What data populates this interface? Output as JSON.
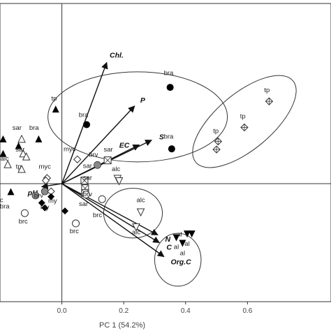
{
  "chart_data": {
    "type": "scatter",
    "title": "",
    "xlabel": "PC 1 (54.2%)",
    "ylabel": "",
    "xlim": [
      -0.2,
      0.87
    ],
    "ylim": [
      -0.38,
      0.58
    ],
    "x_ticks": [
      0.0,
      0.2,
      0.4,
      0.6
    ],
    "x_tick_labels": [
      "0.0",
      "0.2",
      "0.4",
      "0.6"
    ],
    "grid": false,
    "reference_lines": {
      "x": 0,
      "y": 0
    },
    "vectors": [
      {
        "label": "Chl.",
        "x": 0.145,
        "y": 0.39
      },
      {
        "label": "P",
        "x": 0.235,
        "y": 0.25
      },
      {
        "label": "S",
        "x": 0.29,
        "y": 0.14
      },
      {
        "label": "EC",
        "x": 0.25,
        "y": 0.125
      },
      {
        "label": "pH",
        "x": -0.065,
        "y": -0.01
      },
      {
        "label": "N",
        "x": 0.31,
        "y": -0.165
      },
      {
        "label": "C",
        "x": 0.315,
        "y": -0.19
      },
      {
        "label": "Org.C",
        "x": 0.33,
        "y": -0.235
      }
    ],
    "points": [
      {
        "label": "bra",
        "marker": "filled-circle",
        "x": 0.35,
        "y": 0.31
      },
      {
        "label": "bra",
        "marker": "filled-circle",
        "x": 0.08,
        "y": 0.19
      },
      {
        "label": "bra",
        "marker": "filled-circle",
        "x": 0.355,
        "y": 0.112
      },
      {
        "label": "tp",
        "marker": "crossed-diamond",
        "x": 0.67,
        "y": 0.265
      },
      {
        "label": "tp",
        "marker": "crossed-diamond",
        "x": 0.59,
        "y": 0.181
      },
      {
        "label": "tp",
        "marker": "crossed-diamond",
        "x": 0.505,
        "y": 0.136
      },
      {
        "label": "",
        "marker": "crossed-diamond",
        "x": 0.5,
        "y": 0.11
      },
      {
        "label": "tp",
        "marker": "filled-triangle",
        "x": -0.02,
        "y": 0.238
      },
      {
        "label": "sar",
        "marker": "open-triangle",
        "x": -0.13,
        "y": 0.142
      },
      {
        "label": "bra",
        "marker": "filled-triangle",
        "x": -0.075,
        "y": 0.142
      },
      {
        "label": "",
        "marker": "filled-triangle",
        "x": -0.19,
        "y": 0.142
      },
      {
        "label": "sar",
        "marker": "filled-triangle",
        "x": -0.14,
        "y": 0.12
      },
      {
        "label": "",
        "marker": "open-triangle",
        "x": -0.125,
        "y": 0.095
      },
      {
        "label": "",
        "marker": "open-triangle",
        "x": -0.115,
        "y": 0.085
      },
      {
        "label": "alc",
        "marker": "open-triangle",
        "x": -0.175,
        "y": 0.06
      },
      {
        "label": "",
        "marker": "filled-triangle",
        "x": -0.19,
        "y": 0.095
      },
      {
        "label": "tp",
        "marker": "open-triangle",
        "x": -0.13,
        "y": 0.045
      },
      {
        "label": "bra",
        "marker": "filled-triangle",
        "x": -0.165,
        "y": -0.028
      },
      {
        "label": "myc",
        "marker": "open-diamond",
        "x": 0.05,
        "y": 0.078
      },
      {
        "label": "sar",
        "marker": "crossed-square",
        "x": 0.148,
        "y": 0.075
      },
      {
        "label": "brv",
        "marker": "gray-circle",
        "x": 0.115,
        "y": 0.06
      },
      {
        "label": "sar",
        "marker": "crossed-square",
        "x": 0.073,
        "y": 0.01
      },
      {
        "label": "myc",
        "marker": "open-diamond",
        "x": -0.048,
        "y": 0.018
      },
      {
        "label": "",
        "marker": "open-diamond",
        "x": -0.052,
        "y": 0.01
      },
      {
        "label": "sar",
        "marker": "crossed-square",
        "x": 0.075,
        "y": -0.015
      },
      {
        "label": "",
        "marker": "crossed-square",
        "x": 0.075,
        "y": -0.03
      },
      {
        "label": "brv",
        "marker": "gray-circle",
        "x": -0.055,
        "y": -0.025
      },
      {
        "label": "",
        "marker": "gray-circle",
        "x": -0.085,
        "y": -0.038
      },
      {
        "label": "",
        "marker": "open-diamond",
        "x": -0.035,
        "y": -0.025
      },
      {
        "label": "",
        "marker": "open-circle",
        "x": 0.078,
        "y": -0.035
      },
      {
        "label": "",
        "marker": "open-circle",
        "x": 0.13,
        "y": -0.05
      },
      {
        "label": "my",
        "marker": "filled-diamond",
        "x": -0.035,
        "y": -0.042
      },
      {
        "label": "my",
        "marker": "filled-diamond",
        "x": -0.065,
        "y": -0.062
      },
      {
        "label": "",
        "marker": "filled-diamond",
        "x": -0.055,
        "y": -0.078
      },
      {
        "label": "",
        "marker": "filled-diamond",
        "x": 0.01,
        "y": -0.088
      },
      {
        "label": "brc",
        "marker": "open-circle",
        "x": -0.12,
        "y": -0.095
      },
      {
        "label": "brc",
        "marker": "open-circle",
        "x": 0.045,
        "y": -0.128
      },
      {
        "label": "alc",
        "marker": "open-tri-down",
        "x": 0.18,
        "y": 0.018
      },
      {
        "label": "",
        "marker": "open-tri-down",
        "x": 0.185,
        "y": 0.01
      },
      {
        "label": "alc",
        "marker": "open-tri-down",
        "x": 0.255,
        "y": -0.09
      },
      {
        "label": "alc",
        "marker": "open-tri-down",
        "x": 0.24,
        "y": -0.138
      },
      {
        "label": "al",
        "marker": "filled-tri-down",
        "x": 0.405,
        "y": -0.16
      },
      {
        "label": "al",
        "marker": "filled-tri-down",
        "x": 0.42,
        "y": -0.16
      },
      {
        "label": "al",
        "marker": "filled-tri-down",
        "x": 0.37,
        "y": -0.172
      },
      {
        "label": "al",
        "marker": "filled-tri-down",
        "x": 0.39,
        "y": -0.19
      }
    ],
    "point_labels": [
      {
        "text": "bra",
        "x": 0.345,
        "y": 0.35
      },
      {
        "text": "bra",
        "x": 0.07,
        "y": 0.215
      },
      {
        "text": "bra",
        "x": 0.345,
        "y": 0.145
      },
      {
        "text": "tp",
        "x": 0.663,
        "y": 0.295
      },
      {
        "text": "tp",
        "x": 0.585,
        "y": 0.21
      },
      {
        "text": "tp",
        "x": 0.498,
        "y": 0.163
      },
      {
        "text": "tp",
        "x": -0.025,
        "y": 0.268
      },
      {
        "text": "sar",
        "x": -0.145,
        "y": 0.173
      },
      {
        "text": "bra",
        "x": -0.09,
        "y": 0.173
      },
      {
        "text": "sar",
        "x": -0.135,
        "y": 0.103
      },
      {
        "text": "alc",
        "x": -0.185,
        "y": 0.074
      },
      {
        "text": "tp",
        "x": -0.14,
        "y": 0.048
      },
      {
        "text": "bra",
        "x": -0.185,
        "y": -0.08
      },
      {
        "text": "myc",
        "x": 0.025,
        "y": 0.105
      },
      {
        "text": "sar",
        "x": 0.15,
        "y": 0.103
      },
      {
        "text": "brv",
        "x": 0.102,
        "y": 0.086
      },
      {
        "text": "sar",
        "x": 0.083,
        "y": 0.05
      },
      {
        "text": "myc",
        "x": -0.055,
        "y": 0.048
      },
      {
        "text": "sar",
        "x": 0.083,
        "y": 0.012
      },
      {
        "text": "brv",
        "x": 0.083,
        "y": -0.04
      },
      {
        "text": "brv",
        "x": -0.075,
        "y": -0.045
      },
      {
        "text": "my",
        "x": -0.03,
        "y": -0.062
      },
      {
        "text": "my",
        "x": -0.055,
        "y": -0.082
      },
      {
        "text": "sar",
        "x": 0.07,
        "y": -0.072
      },
      {
        "text": "brc",
        "x": 0.115,
        "y": -0.108
      },
      {
        "text": "brc",
        "x": -0.125,
        "y": -0.128
      },
      {
        "text": "brc",
        "x": 0.04,
        "y": -0.16
      },
      {
        "text": "alc",
        "x": 0.175,
        "y": 0.04
      },
      {
        "text": "alc",
        "x": 0.255,
        "y": -0.06
      },
      {
        "text": "alc",
        "x": 0.24,
        "y": -0.163
      },
      {
        "text": "al",
        "x": 0.38,
        "y": -0.17
      },
      {
        "text": "al",
        "x": 0.405,
        "y": -0.2
      },
      {
        "text": "al",
        "x": 0.37,
        "y": -0.21
      },
      {
        "text": "al",
        "x": 0.39,
        "y": -0.23
      },
      {
        "text": "c",
        "x": -0.195,
        "y": -0.06
      }
    ],
    "groups": [
      {
        "cx": 0.245,
        "cy": 0.215,
        "rx": 0.29,
        "ry": 0.145,
        "rotate_deg": 0
      },
      {
        "cx": 0.59,
        "cy": 0.2,
        "rx": 0.205,
        "ry": 0.09,
        "rotate_deg": -40
      },
      {
        "cx": 0.23,
        "cy": -0.095,
        "rx": 0.095,
        "ry": 0.08,
        "rotate_deg": 0
      },
      {
        "cx": 0.375,
        "cy": -0.245,
        "rx": 0.075,
        "ry": 0.085,
        "rotate_deg": 0
      }
    ]
  }
}
